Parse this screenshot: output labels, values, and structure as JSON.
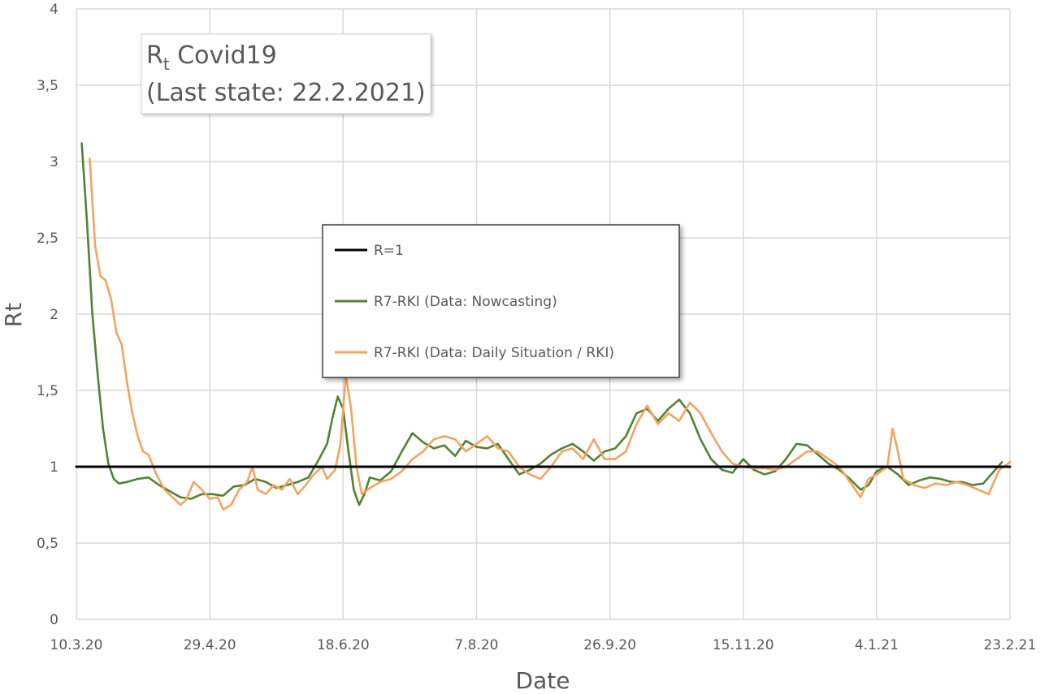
{
  "chart_data": {
    "type": "line",
    "title_line1_main": "R",
    "title_line1_sub": "t",
    "title_line1_rest": " Covid19",
    "title_line2": "(Last state: 22.2.2021)",
    "xlabel": "Date",
    "ylabel": "Rt",
    "xlim": [
      "2020-03-10",
      "2021-02-23"
    ],
    "ylim": [
      0,
      4
    ],
    "grid": true,
    "legend_position": "center",
    "x_ticks": [
      {
        "date": "2020-03-10",
        "label": "10.3.20"
      },
      {
        "date": "2020-04-29",
        "label": "29.4.20"
      },
      {
        "date": "2020-06-18",
        "label": "18.6.20"
      },
      {
        "date": "2020-08-07",
        "label": "7.8.20"
      },
      {
        "date": "2020-09-26",
        "label": "26.9.20"
      },
      {
        "date": "2020-11-15",
        "label": "15.11.20"
      },
      {
        "date": "2021-01-04",
        "label": "4.1.21"
      },
      {
        "date": "2021-02-23",
        "label": "23.2.21"
      }
    ],
    "y_ticks": [
      {
        "value": 0,
        "label": "0"
      },
      {
        "value": 0.5,
        "label": "0,5"
      },
      {
        "value": 1,
        "label": "1"
      },
      {
        "value": 1.5,
        "label": "1,5"
      },
      {
        "value": 2,
        "label": "2"
      },
      {
        "value": 2.5,
        "label": "2,5"
      },
      {
        "value": 3,
        "label": "3"
      },
      {
        "value": 3.5,
        "label": "3,5"
      },
      {
        "value": 4,
        "label": "4"
      }
    ],
    "series": [
      {
        "name": "R=1",
        "color": "#000000",
        "points": [
          [
            "2020-03-10",
            1.0
          ],
          [
            "2021-02-23",
            1.0
          ]
        ]
      },
      {
        "name": "R7-RKI (Data: Nowcasting)",
        "color": "#548235",
        "points": [
          [
            "2020-03-12",
            3.12
          ],
          [
            "2020-03-14",
            2.6
          ],
          [
            "2020-03-16",
            2.0
          ],
          [
            "2020-03-18",
            1.6
          ],
          [
            "2020-03-20",
            1.25
          ],
          [
            "2020-03-22",
            1.02
          ],
          [
            "2020-03-24",
            0.92
          ],
          [
            "2020-03-26",
            0.89
          ],
          [
            "2020-03-29",
            0.9
          ],
          [
            "2020-04-02",
            0.92
          ],
          [
            "2020-04-06",
            0.93
          ],
          [
            "2020-04-10",
            0.88
          ],
          [
            "2020-04-14",
            0.84
          ],
          [
            "2020-04-18",
            0.8
          ],
          [
            "2020-04-22",
            0.79
          ],
          [
            "2020-04-26",
            0.82
          ],
          [
            "2020-04-30",
            0.82
          ],
          [
            "2020-05-04",
            0.81
          ],
          [
            "2020-05-08",
            0.87
          ],
          [
            "2020-05-12",
            0.88
          ],
          [
            "2020-05-16",
            0.92
          ],
          [
            "2020-05-20",
            0.9
          ],
          [
            "2020-05-24",
            0.86
          ],
          [
            "2020-05-28",
            0.88
          ],
          [
            "2020-06-01",
            0.9
          ],
          [
            "2020-06-05",
            0.93
          ],
          [
            "2020-06-09",
            1.05
          ],
          [
            "2020-06-12",
            1.15
          ],
          [
            "2020-06-14",
            1.32
          ],
          [
            "2020-06-16",
            1.46
          ],
          [
            "2020-06-18",
            1.38
          ],
          [
            "2020-06-20",
            1.1
          ],
          [
            "2020-06-22",
            0.85
          ],
          [
            "2020-06-24",
            0.75
          ],
          [
            "2020-06-26",
            0.82
          ],
          [
            "2020-06-28",
            0.93
          ],
          [
            "2020-07-02",
            0.91
          ],
          [
            "2020-07-06",
            0.97
          ],
          [
            "2020-07-10",
            1.1
          ],
          [
            "2020-07-14",
            1.22
          ],
          [
            "2020-07-18",
            1.16
          ],
          [
            "2020-07-22",
            1.12
          ],
          [
            "2020-07-26",
            1.14
          ],
          [
            "2020-07-30",
            1.07
          ],
          [
            "2020-08-03",
            1.17
          ],
          [
            "2020-08-07",
            1.13
          ],
          [
            "2020-08-11",
            1.12
          ],
          [
            "2020-08-15",
            1.15
          ],
          [
            "2020-08-19",
            1.05
          ],
          [
            "2020-08-23",
            0.95
          ],
          [
            "2020-08-27",
            0.98
          ],
          [
            "2020-08-31",
            1.02
          ],
          [
            "2020-09-04",
            1.08
          ],
          [
            "2020-09-08",
            1.12
          ],
          [
            "2020-09-12",
            1.15
          ],
          [
            "2020-09-16",
            1.1
          ],
          [
            "2020-09-20",
            1.04
          ],
          [
            "2020-09-24",
            1.1
          ],
          [
            "2020-09-28",
            1.12
          ],
          [
            "2020-10-02",
            1.2
          ],
          [
            "2020-10-06",
            1.35
          ],
          [
            "2020-10-10",
            1.38
          ],
          [
            "2020-10-14",
            1.3
          ],
          [
            "2020-10-18",
            1.38
          ],
          [
            "2020-10-22",
            1.44
          ],
          [
            "2020-10-26",
            1.35
          ],
          [
            "2020-10-30",
            1.18
          ],
          [
            "2020-11-03",
            1.05
          ],
          [
            "2020-11-07",
            0.98
          ],
          [
            "2020-11-11",
            0.96
          ],
          [
            "2020-11-15",
            1.05
          ],
          [
            "2020-11-19",
            0.98
          ],
          [
            "2020-11-23",
            0.95
          ],
          [
            "2020-11-27",
            0.97
          ],
          [
            "2020-12-01",
            1.05
          ],
          [
            "2020-12-05",
            1.15
          ],
          [
            "2020-12-09",
            1.14
          ],
          [
            "2020-12-13",
            1.08
          ],
          [
            "2020-12-17",
            1.02
          ],
          [
            "2020-12-21",
            0.98
          ],
          [
            "2020-12-25",
            0.92
          ],
          [
            "2020-12-29",
            0.85
          ],
          [
            "2021-01-01",
            0.88
          ],
          [
            "2021-01-04",
            0.97
          ],
          [
            "2021-01-08",
            1.0
          ],
          [
            "2021-01-12",
            0.95
          ],
          [
            "2021-01-16",
            0.88
          ],
          [
            "2021-01-20",
            0.91
          ],
          [
            "2021-01-24",
            0.93
          ],
          [
            "2021-01-28",
            0.92
          ],
          [
            "2021-02-01",
            0.9
          ],
          [
            "2021-02-05",
            0.9
          ],
          [
            "2021-02-09",
            0.88
          ],
          [
            "2021-02-13",
            0.89
          ],
          [
            "2021-02-16",
            0.95
          ],
          [
            "2021-02-20",
            1.03
          ]
        ]
      },
      {
        "name": "R7-RKI (Data: Daily Situation / RKI)",
        "color": "#f4a460",
        "points": [
          [
            "2020-03-15",
            3.02
          ],
          [
            "2020-03-17",
            2.45
          ],
          [
            "2020-03-19",
            2.25
          ],
          [
            "2020-03-21",
            2.22
          ],
          [
            "2020-03-23",
            2.1
          ],
          [
            "2020-03-25",
            1.88
          ],
          [
            "2020-03-27",
            1.8
          ],
          [
            "2020-03-29",
            1.55
          ],
          [
            "2020-03-31",
            1.35
          ],
          [
            "2020-04-02",
            1.2
          ],
          [
            "2020-04-04",
            1.1
          ],
          [
            "2020-04-06",
            1.08
          ],
          [
            "2020-04-09",
            0.95
          ],
          [
            "2020-04-12",
            0.85
          ],
          [
            "2020-04-15",
            0.8
          ],
          [
            "2020-04-18",
            0.75
          ],
          [
            "2020-04-20",
            0.78
          ],
          [
            "2020-04-23",
            0.9
          ],
          [
            "2020-04-26",
            0.85
          ],
          [
            "2020-04-29",
            0.79
          ],
          [
            "2020-05-02",
            0.8
          ],
          [
            "2020-05-04",
            0.72
          ],
          [
            "2020-05-07",
            0.75
          ],
          [
            "2020-05-10",
            0.85
          ],
          [
            "2020-05-13",
            0.9
          ],
          [
            "2020-05-15",
            1.0
          ],
          [
            "2020-05-17",
            0.85
          ],
          [
            "2020-05-20",
            0.82
          ],
          [
            "2020-05-23",
            0.88
          ],
          [
            "2020-05-26",
            0.85
          ],
          [
            "2020-05-29",
            0.92
          ],
          [
            "2020-06-01",
            0.82
          ],
          [
            "2020-06-04",
            0.88
          ],
          [
            "2020-06-07",
            0.95
          ],
          [
            "2020-06-10",
            1.0
          ],
          [
            "2020-06-12",
            0.92
          ],
          [
            "2020-06-15",
            0.98
          ],
          [
            "2020-06-17",
            1.15
          ],
          [
            "2020-06-19",
            1.6
          ],
          [
            "2020-06-21",
            1.38
          ],
          [
            "2020-06-23",
            1.0
          ],
          [
            "2020-06-25",
            0.82
          ],
          [
            "2020-06-28",
            0.86
          ],
          [
            "2020-07-02",
            0.9
          ],
          [
            "2020-07-06",
            0.92
          ],
          [
            "2020-07-10",
            0.97
          ],
          [
            "2020-07-14",
            1.05
          ],
          [
            "2020-07-18",
            1.1
          ],
          [
            "2020-07-22",
            1.18
          ],
          [
            "2020-07-26",
            1.2
          ],
          [
            "2020-07-30",
            1.18
          ],
          [
            "2020-08-03",
            1.1
          ],
          [
            "2020-08-07",
            1.15
          ],
          [
            "2020-08-11",
            1.2
          ],
          [
            "2020-08-15",
            1.12
          ],
          [
            "2020-08-19",
            1.1
          ],
          [
            "2020-08-23",
            1.0
          ],
          [
            "2020-08-27",
            0.95
          ],
          [
            "2020-08-31",
            0.92
          ],
          [
            "2020-09-04",
            1.0
          ],
          [
            "2020-09-08",
            1.1
          ],
          [
            "2020-09-12",
            1.12
          ],
          [
            "2020-09-16",
            1.05
          ],
          [
            "2020-09-20",
            1.18
          ],
          [
            "2020-09-24",
            1.05
          ],
          [
            "2020-09-28",
            1.05
          ],
          [
            "2020-10-02",
            1.1
          ],
          [
            "2020-10-06",
            1.28
          ],
          [
            "2020-10-10",
            1.4
          ],
          [
            "2020-10-14",
            1.28
          ],
          [
            "2020-10-18",
            1.35
          ],
          [
            "2020-10-22",
            1.3
          ],
          [
            "2020-10-26",
            1.42
          ],
          [
            "2020-10-30",
            1.35
          ],
          [
            "2020-11-03",
            1.22
          ],
          [
            "2020-11-07",
            1.1
          ],
          [
            "2020-11-11",
            1.02
          ],
          [
            "2020-11-15",
            1.0
          ],
          [
            "2020-11-19",
            0.99
          ],
          [
            "2020-11-23",
            0.99
          ],
          [
            "2020-11-27",
            0.98
          ],
          [
            "2020-12-01",
            1.0
          ],
          [
            "2020-12-05",
            1.05
          ],
          [
            "2020-12-09",
            1.1
          ],
          [
            "2020-12-13",
            1.1
          ],
          [
            "2020-12-17",
            1.05
          ],
          [
            "2020-12-21",
            1.0
          ],
          [
            "2020-12-25",
            0.9
          ],
          [
            "2020-12-29",
            0.8
          ],
          [
            "2021-01-01",
            0.92
          ],
          [
            "2021-01-04",
            0.95
          ],
          [
            "2021-01-08",
            1.0
          ],
          [
            "2021-01-10",
            1.25
          ],
          [
            "2021-01-12",
            1.1
          ],
          [
            "2021-01-14",
            0.92
          ],
          [
            "2021-01-18",
            0.88
          ],
          [
            "2021-01-22",
            0.86
          ],
          [
            "2021-01-26",
            0.89
          ],
          [
            "2021-01-30",
            0.88
          ],
          [
            "2021-02-03",
            0.9
          ],
          [
            "2021-02-07",
            0.88
          ],
          [
            "2021-02-11",
            0.85
          ],
          [
            "2021-02-15",
            0.82
          ],
          [
            "2021-02-19",
            0.98
          ],
          [
            "2021-02-23",
            1.03
          ]
        ]
      }
    ]
  }
}
